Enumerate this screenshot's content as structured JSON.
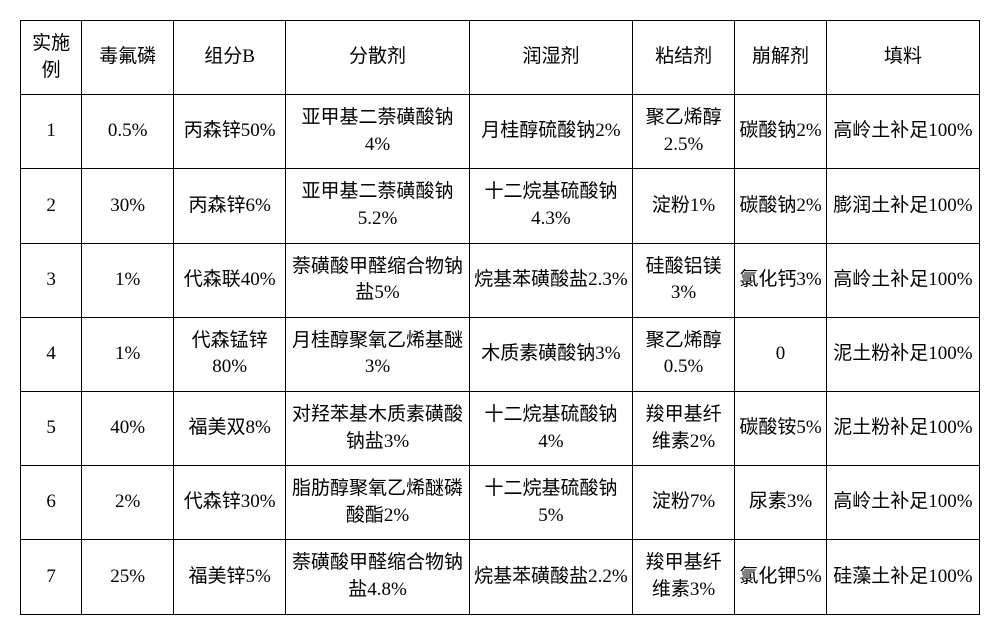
{
  "table": {
    "columns": [
      {
        "label": "实施例",
        "class": "col-0"
      },
      {
        "label": "毒氟磷",
        "class": "col-1"
      },
      {
        "label": "组分B",
        "class": "col-2"
      },
      {
        "label": "分散剂",
        "class": "col-3"
      },
      {
        "label": "润湿剂",
        "class": "col-4"
      },
      {
        "label": "粘结剂",
        "class": "col-5"
      },
      {
        "label": "崩解剂",
        "class": "col-6"
      },
      {
        "label": "填料",
        "class": "col-7"
      }
    ],
    "rows": [
      [
        "1",
        "0.5%",
        "丙森锌50%",
        "亚甲基二萘磺酸钠4%",
        "月桂醇硫酸钠2%",
        "聚乙烯醇2.5%",
        "碳酸钠2%",
        "高岭土补足100%"
      ],
      [
        "2",
        "30%",
        "丙森锌6%",
        "亚甲基二萘磺酸钠5.2%",
        "十二烷基硫酸钠4.3%",
        "淀粉1%",
        "碳酸钠2%",
        "膨润土补足100%"
      ],
      [
        "3",
        "1%",
        "代森联40%",
        "萘磺酸甲醛缩合物钠盐5%",
        "烷基苯磺酸盐2.3%",
        "硅酸铝镁3%",
        "氯化钙3%",
        "高岭土补足100%"
      ],
      [
        "4",
        "1%",
        "代森锰锌80%",
        "月桂醇聚氧乙烯基醚3%",
        "木质素磺酸钠3%",
        "聚乙烯醇0.5%",
        "0",
        "泥土粉补足100%"
      ],
      [
        "5",
        "40%",
        "福美双8%",
        "对羟苯基木质素磺酸钠盐3%",
        "十二烷基硫酸钠4%",
        "羧甲基纤维素2%",
        "碳酸铵5%",
        "泥土粉补足100%"
      ],
      [
        "6",
        "2%",
        "代森锌30%",
        "脂肪醇聚氧乙烯醚磷酸酯2%",
        "十二烷基硫酸钠5%",
        "淀粉7%",
        "尿素3%",
        "高岭土补足100%"
      ],
      [
        "7",
        "25%",
        "福美锌5%",
        "萘磺酸甲醛缩合物钠盐4.8%",
        "烷基苯磺酸盐2.2%",
        "羧甲基纤维素3%",
        "氯化钾5%",
        "硅藻土补足100%"
      ]
    ],
    "border_color": "#000000",
    "background_color": "#ffffff",
    "text_color": "#000000",
    "font_family": "SimSun",
    "base_fontsize": 19
  }
}
